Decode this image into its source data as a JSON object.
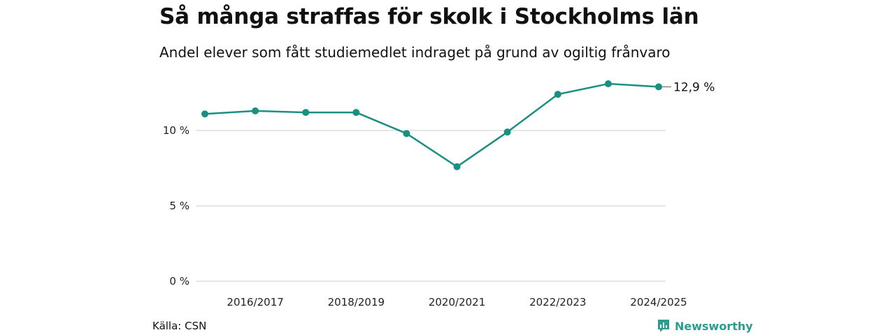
{
  "title": "Så många straffas för skolk i Stockholms län",
  "subtitle": "Andel elever som fått studiemedlet indraget på grund av ogiltig frånvaro",
  "source": "Källa: CSN",
  "logo_text": "Newsworthy",
  "colors": {
    "line": "#1b8f80",
    "grid": "#dddddd",
    "logo": "#2a9d8f"
  },
  "chart_data": {
    "type": "line",
    "title": "Så många straffas för skolk i Stockholms län",
    "subtitle": "Andel elever som fått studiemedlet indraget på grund av ogiltig frånvaro",
    "x": [
      "2015/2016",
      "2016/2017",
      "2017/2018",
      "2018/2019",
      "2019/2020",
      "2020/2021",
      "2021/2022",
      "2022/2023",
      "2023/2024",
      "2024/2025"
    ],
    "series": [
      {
        "values": [
          11.1,
          11.3,
          11.2,
          11.2,
          9.8,
          7.6,
          9.9,
          12.4,
          13.1,
          12.9
        ]
      }
    ],
    "x_tick_labels": [
      "2016/2017",
      "2018/2019",
      "2020/2021",
      "2022/2023",
      "2024/2025"
    ],
    "y_ticks": [
      0,
      5,
      10
    ],
    "y_tick_labels": [
      "0 %",
      "5 %",
      "10 %"
    ],
    "ylim": [
      0,
      14
    ],
    "end_label": "12,9 %",
    "grid": true,
    "legend": "none"
  }
}
